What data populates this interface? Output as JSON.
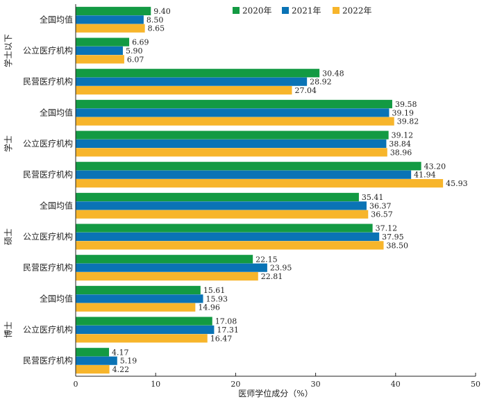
{
  "chart_data": {
    "type": "bar",
    "orientation": "horizontal",
    "xlabel": "医师学位成分（%）",
    "xlim": [
      0,
      50
    ],
    "xticks": [
      0,
      10,
      20,
      30,
      40,
      50
    ],
    "grid": false,
    "legend_position": "top",
    "series": [
      {
        "name": "2020年",
        "color": "#139A43"
      },
      {
        "name": "2021年",
        "color": "#0A73B5"
      },
      {
        "name": "2022年",
        "color": "#F7B52B"
      }
    ],
    "groups": [
      {
        "label": "学士以下",
        "categories": [
          {
            "label": "全国均值",
            "values": [
              9.4,
              8.5,
              8.65
            ],
            "value_labels": [
              "9.40",
              "8.50",
              "8.65"
            ]
          },
          {
            "label": "公立医疗机构",
            "values": [
              6.69,
              5.9,
              6.07
            ],
            "value_labels": [
              "6.69",
              "5.90",
              "6.07"
            ]
          },
          {
            "label": "民营医疗机构",
            "values": [
              30.48,
              28.92,
              27.04
            ],
            "value_labels": [
              "30.48",
              "28.92",
              "27.04"
            ]
          }
        ]
      },
      {
        "label": "学士",
        "categories": [
          {
            "label": "全国均值",
            "values": [
              39.58,
              39.19,
              39.82
            ],
            "value_labels": [
              "39.58",
              "39.19",
              "39.82"
            ]
          },
          {
            "label": "公立医疗机构",
            "values": [
              39.12,
              38.84,
              38.96
            ],
            "value_labels": [
              "39.12",
              "38.84",
              "38.96"
            ]
          },
          {
            "label": "民营医疗机构",
            "values": [
              43.2,
              41.94,
              45.93
            ],
            "value_labels": [
              "43.20",
              "41.94",
              "45.93"
            ]
          }
        ]
      },
      {
        "label": "硕士",
        "categories": [
          {
            "label": "全国均值",
            "values": [
              35.41,
              36.37,
              36.57
            ],
            "value_labels": [
              "35.41",
              "36.37",
              "36.57"
            ]
          },
          {
            "label": "公立医疗机构",
            "values": [
              37.12,
              37.95,
              38.5
            ],
            "value_labels": [
              "37.12",
              "37.95",
              "38.50"
            ]
          },
          {
            "label": "民营医疗机构",
            "values": [
              22.15,
              23.95,
              22.81
            ],
            "value_labels": [
              "22.15",
              "23.95",
              "22.81"
            ]
          }
        ]
      },
      {
        "label": "博士",
        "categories": [
          {
            "label": "全国均值",
            "values": [
              15.61,
              15.93,
              14.96
            ],
            "value_labels": [
              "15.61",
              "15.93",
              "14.96"
            ]
          },
          {
            "label": "公立医疗机构",
            "values": [
              17.08,
              17.31,
              16.47
            ],
            "value_labels": [
              "17.08",
              "17.31",
              "16.47"
            ]
          },
          {
            "label": "民营医疗机构",
            "values": [
              4.17,
              5.19,
              4.22
            ],
            "value_labels": [
              "4.17",
              "5.19",
              "4.22"
            ]
          }
        ]
      }
    ]
  }
}
